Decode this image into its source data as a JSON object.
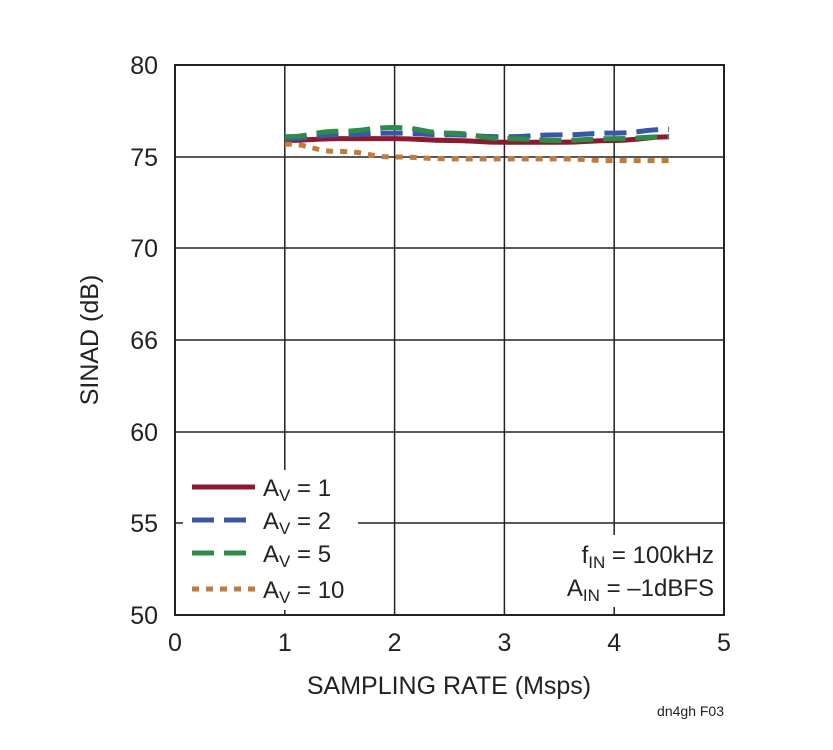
{
  "chart_data": {
    "type": "line",
    "xlabel": "SAMPLING RATE (Msps)",
    "ylabel": "SINAD (dB)",
    "xlim": [
      0,
      5
    ],
    "ylim": [
      50,
      80
    ],
    "x_ticks": [
      "0",
      "1",
      "2",
      "3",
      "4",
      "5"
    ],
    "y_ticks": [
      "50",
      "55",
      "60",
      "66",
      "70",
      "75",
      "80"
    ],
    "grid": true,
    "legend_position": "bottom-left",
    "series": [
      {
        "name_main": "A",
        "name_sub": "V",
        "name_rest": " = 1",
        "color": "#8b1a2f",
        "style": "solid",
        "x": [
          1,
          1.5,
          2,
          2.5,
          3,
          3.5,
          4,
          4.5
        ],
        "y": [
          75.9,
          76.0,
          76.0,
          75.9,
          75.8,
          75.8,
          75.9,
          76.1
        ]
      },
      {
        "name_main": "A",
        "name_sub": "V",
        "name_rest": " = 2",
        "color": "#3a56a6",
        "style": "dashed",
        "x": [
          1,
          1.5,
          2,
          2.5,
          3,
          3.5,
          4,
          4.5
        ],
        "y": [
          76.0,
          76.2,
          76.3,
          76.2,
          76.1,
          76.2,
          76.3,
          76.5
        ]
      },
      {
        "name_main": "A",
        "name_sub": "V",
        "name_rest": " = 5",
        "color": "#2e8b4a",
        "style": "dashed",
        "x": [
          1,
          1.5,
          2,
          2.5,
          3,
          3.5,
          4,
          4.5
        ],
        "y": [
          76.1,
          76.4,
          76.6,
          76.3,
          76.0,
          75.9,
          76.0,
          76.1
        ]
      },
      {
        "name_main": "A",
        "name_sub": "V",
        "name_rest": " = 10",
        "color": "#c07a3a",
        "style": "dotted",
        "x": [
          1,
          1.5,
          2,
          2.5,
          3,
          3.5,
          4,
          4.5
        ],
        "y": [
          75.7,
          75.3,
          75.0,
          74.9,
          74.9,
          74.9,
          74.8,
          74.8
        ]
      }
    ],
    "annotations": [
      {
        "main": "f",
        "sub": "IN",
        "rest": " = 100kHz"
      },
      {
        "main": "A",
        "sub": "IN",
        "rest": " = –1dBFS"
      }
    ],
    "figure_id": "dn4gh F03"
  }
}
